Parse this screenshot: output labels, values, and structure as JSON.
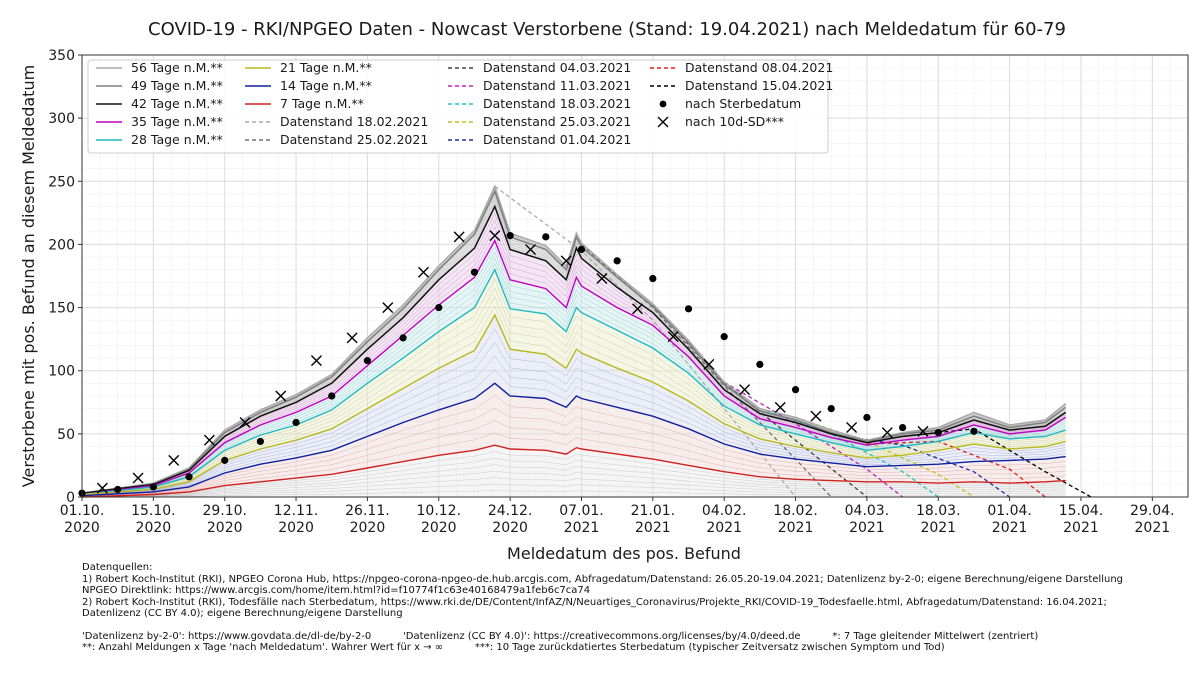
{
  "chart_data": {
    "type": "line",
    "title": "COVID-19 - RKI/NPGEO Daten - Nowcast Verstorbene (Stand: 19.04.2021) nach Meldedatum für 60-79",
    "xlabel": "Meldedatum des pos. Befund",
    "ylabel": "Verstorbene mit pos. Befund an diesem Meldedatum",
    "xlim": [
      "2020-10-01",
      "2021-05-06"
    ],
    "ylim": [
      0,
      350
    ],
    "grid": true,
    "legend_position": "top-left",
    "y_ticks": [
      0,
      50,
      100,
      150,
      200,
      250,
      300,
      350
    ],
    "x_ticks": [
      {
        "date": "2020-10-01",
        "label1": "01.10.",
        "label2": "2020"
      },
      {
        "date": "2020-10-15",
        "label1": "15.10.",
        "label2": "2020"
      },
      {
        "date": "2020-10-29",
        "label1": "29.10.",
        "label2": "2020"
      },
      {
        "date": "2020-11-12",
        "label1": "12.11.",
        "label2": "2020"
      },
      {
        "date": "2020-11-26",
        "label1": "26.11.",
        "label2": "2020"
      },
      {
        "date": "2020-12-10",
        "label1": "10.12.",
        "label2": "2020"
      },
      {
        "date": "2020-12-24",
        "label1": "24.12.",
        "label2": "2020"
      },
      {
        "date": "2021-01-07",
        "label1": "07.01.",
        "label2": "2021"
      },
      {
        "date": "2021-01-21",
        "label1": "21.01.",
        "label2": "2021"
      },
      {
        "date": "2021-02-04",
        "label1": "04.02.",
        "label2": "2021"
      },
      {
        "date": "2021-02-18",
        "label1": "18.02.",
        "label2": "2021"
      },
      {
        "date": "2021-03-04",
        "label1": "04.03.",
        "label2": "2021"
      },
      {
        "date": "2021-03-18",
        "label1": "18.03.",
        "label2": "2021"
      },
      {
        "date": "2021-04-01",
        "label1": "01.04.",
        "label2": "2021"
      },
      {
        "date": "2021-04-15",
        "label1": "15.04.",
        "label2": "2021"
      },
      {
        "date": "2021-04-29",
        "label1": "29.04.",
        "label2": "2021"
      }
    ],
    "x_dates": [
      "2020-10-01",
      "2020-10-15",
      "2020-10-22",
      "2020-10-29",
      "2020-11-05",
      "2020-11-12",
      "2020-11-19",
      "2020-11-26",
      "2020-12-03",
      "2020-12-10",
      "2020-12-17",
      "2020-12-21",
      "2020-12-24",
      "2020-12-31",
      "2021-01-04",
      "2021-01-06",
      "2021-01-07",
      "2021-01-14",
      "2021-01-21",
      "2021-01-28",
      "2021-02-04",
      "2021-02-11",
      "2021-02-18",
      "2021-02-25",
      "2021-03-04",
      "2021-03-11",
      "2021-03-18",
      "2021-03-25",
      "2021-04-01",
      "2021-04-08",
      "2021-04-12"
    ],
    "series": [
      {
        "name": "56 Tage n.M.**",
        "color": "#aaaaaa",
        "style": "solid",
        "values": [
          3,
          11,
          23,
          53,
          69,
          81,
          97,
          126,
          152,
          183,
          211,
          246,
          209,
          199,
          183,
          209,
          201,
          176,
          153,
          124,
          91,
          70,
          63,
          53,
          45,
          51,
          55,
          67,
          57,
          61,
          74
        ]
      },
      {
        "name": "49 Tage n.M.**",
        "color": "#808080",
        "style": "solid",
        "values": [
          3,
          10,
          22,
          51,
          67,
          79,
          95,
          123,
          149,
          180,
          208,
          242,
          206,
          196,
          180,
          206,
          198,
          174,
          151,
          122,
          89,
          68,
          61,
          51,
          44,
          50,
          53,
          64,
          55,
          59,
          71
        ]
      },
      {
        "name": "42 Tage n.M.**",
        "color": "#111111",
        "style": "solid",
        "values": [
          3,
          10,
          21,
          48,
          64,
          75,
          90,
          117,
          142,
          172,
          197,
          230,
          196,
          187,
          172,
          197,
          189,
          166,
          146,
          117,
          85,
          66,
          59,
          50,
          43,
          48,
          51,
          61,
          53,
          56,
          67
        ]
      },
      {
        "name": "35 Tage n.M.**",
        "color": "#c000c0",
        "style": "solid",
        "values": [
          2,
          9,
          19,
          43,
          57,
          67,
          80,
          104,
          128,
          152,
          174,
          203,
          172,
          165,
          150,
          174,
          167,
          150,
          136,
          111,
          80,
          62,
          55,
          47,
          41,
          45,
          48,
          57,
          50,
          53,
          63
        ]
      },
      {
        "name": "28 Tage n.M.**",
        "color": "#20b8c0",
        "style": "solid",
        "values": [
          2,
          8,
          16,
          37,
          49,
          57,
          69,
          90,
          110,
          131,
          150,
          180,
          149,
          145,
          131,
          150,
          146,
          132,
          118,
          98,
          72,
          57,
          50,
          43,
          37,
          40,
          44,
          51,
          46,
          48,
          53
        ]
      },
      {
        "name": "21 Tage n.M.**",
        "color": "#b8b820",
        "style": "solid",
        "values": [
          2,
          6,
          12,
          29,
          38,
          45,
          54,
          70,
          86,
          102,
          116,
          144,
          117,
          113,
          102,
          117,
          114,
          102,
          91,
          76,
          58,
          46,
          40,
          35,
          31,
          33,
          37,
          42,
          38,
          40,
          44
        ]
      },
      {
        "name": "14 Tage n.M.**",
        "color": "#1020a0",
        "style": "solid",
        "values": [
          1,
          4,
          8,
          19,
          26,
          31,
          37,
          48,
          59,
          69,
          78,
          90,
          80,
          78,
          71,
          80,
          78,
          71,
          64,
          54,
          42,
          34,
          30,
          27,
          24,
          25,
          26,
          28,
          29,
          30,
          32
        ]
      },
      {
        "name": "7 Tage n.M.**",
        "color": "#d02020",
        "style": "solid",
        "values": [
          0,
          2,
          4,
          9,
          12,
          15,
          18,
          23,
          28,
          33,
          37,
          41,
          38,
          37,
          34,
          39,
          38,
          34,
          30,
          25,
          20,
          16,
          14,
          13,
          12,
          12,
          11,
          12,
          11,
          12,
          13
        ]
      }
    ],
    "datenstand_series": [
      {
        "name": "Datenstand 18.02.2021",
        "color": "#aaaaaa",
        "dates": [
          "2020-12-21",
          "2021-01-07",
          "2021-01-21",
          "2021-02-04",
          "2021-02-18"
        ],
        "values": [
          246,
          195,
          140,
          70,
          0
        ]
      },
      {
        "name": "Datenstand 25.02.2021",
        "color": "#707070",
        "dates": [
          "2021-01-07",
          "2021-01-21",
          "2021-02-04",
          "2021-02-18",
          "2021-02-25"
        ],
        "values": [
          200,
          150,
          88,
          30,
          0
        ]
      },
      {
        "name": "Datenstand 04.03.2021",
        "color": "#404040",
        "dates": [
          "2021-01-21",
          "2021-02-04",
          "2021-02-18",
          "2021-03-04"
        ],
        "values": [
          152,
          90,
          45,
          0
        ]
      },
      {
        "name": "Datenstand 11.03.2021",
        "color": "#c020c0",
        "dates": [
          "2021-02-04",
          "2021-02-18",
          "2021-03-04",
          "2021-03-11"
        ],
        "values": [
          91,
          58,
          22,
          0
        ]
      },
      {
        "name": "Datenstand 18.03.2021",
        "color": "#20c0c0",
        "dates": [
          "2021-02-11",
          "2021-02-25",
          "2021-03-11",
          "2021-03-18"
        ],
        "values": [
          70,
          50,
          20,
          0
        ]
      },
      {
        "name": "Datenstand 25.03.2021",
        "color": "#c0c020",
        "dates": [
          "2021-02-18",
          "2021-03-04",
          "2021-03-18",
          "2021-03-25"
        ],
        "values": [
          63,
          44,
          18,
          0
        ]
      },
      {
        "name": "Datenstand 01.04.2021",
        "color": "#2030a0",
        "dates": [
          "2021-02-25",
          "2021-03-11",
          "2021-03-25",
          "2021-04-01"
        ],
        "values": [
          50,
          41,
          20,
          0
        ]
      },
      {
        "name": "Datenstand 08.04.2021",
        "color": "#e02020",
        "dates": [
          "2021-03-04",
          "2021-03-18",
          "2021-04-01",
          "2021-04-08"
        ],
        "values": [
          42,
          44,
          22,
          0
        ]
      },
      {
        "name": "Datenstand 15.04.2021",
        "color": "#000000",
        "dates": [
          "2021-03-11",
          "2021-03-25",
          "2021-04-01",
          "2021-04-08",
          "2021-04-17"
        ],
        "values": [
          48,
          54,
          37,
          20,
          0
        ]
      }
    ],
    "sterbedatum_points": {
      "name": "nach Sterbedatum",
      "marker": "dot",
      "dates": [
        "2020-10-01",
        "2020-10-08",
        "2020-10-15",
        "2020-10-22",
        "2020-10-29",
        "2020-11-05",
        "2020-11-12",
        "2020-11-19",
        "2020-11-26",
        "2020-12-03",
        "2020-12-10",
        "2020-12-17",
        "2020-12-24",
        "2020-12-31",
        "2021-01-07",
        "2021-01-14",
        "2021-01-21",
        "2021-01-28",
        "2021-02-04",
        "2021-02-11",
        "2021-02-18",
        "2021-02-25",
        "2021-03-04",
        "2021-03-11",
        "2021-03-18",
        "2021-03-25"
      ],
      "values": [
        3,
        6,
        8,
        16,
        29,
        44,
        59,
        80,
        108,
        126,
        150,
        178,
        207,
        206,
        196,
        187,
        173,
        149,
        127,
        105,
        85,
        70,
        63,
        55,
        51,
        52
      ]
    },
    "sd10_points": {
      "name": "nach 10d-SD***",
      "marker": "x",
      "dates": [
        "2020-10-05",
        "2020-10-12",
        "2020-10-19",
        "2020-10-26",
        "2020-11-02",
        "2020-11-09",
        "2020-11-16",
        "2020-11-23",
        "2020-11-30",
        "2020-12-07",
        "2020-12-14",
        "2020-12-21",
        "2020-12-28",
        "2021-01-04",
        "2021-01-11",
        "2021-01-18",
        "2021-01-25",
        "2021-02-01",
        "2021-02-08",
        "2021-02-15",
        "2021-02-22",
        "2021-03-01",
        "2021-03-08",
        "2021-03-15"
      ],
      "values": [
        7,
        15,
        29,
        45,
        59,
        80,
        108,
        126,
        150,
        178,
        206,
        207,
        196,
        187,
        173,
        149,
        127,
        105,
        85,
        71,
        64,
        55,
        51,
        52
      ]
    }
  },
  "legend": {
    "col1": [
      "56 Tage n.M.**",
      "49 Tage n.M.**",
      "42 Tage n.M.**",
      "35 Tage n.M.**",
      "28 Tage n.M.**"
    ],
    "col2": [
      "21 Tage n.M.**",
      "14 Tage n.M.**",
      "7 Tage n.M.**",
      "Datenstand 18.02.2021",
      "Datenstand 25.02.2021"
    ],
    "col3": [
      "Datenstand 04.03.2021",
      "Datenstand 11.03.2021",
      "Datenstand 18.03.2021",
      "Datenstand 25.03.2021",
      "Datenstand 01.04.2021"
    ],
    "col4": [
      "Datenstand 08.04.2021",
      "Datenstand 15.04.2021",
      "nach Sterbedatum",
      "nach 10d-SD***"
    ]
  },
  "footnotes": {
    "sources_heading": "Datenquellen:",
    "line1": "1) Robert Koch-Institut (RKI), NPGEO Corona Hub, https://npgeo-corona-npgeo-de.hub.arcgis.com, Abfragedatum/Datenstand: 26.05.20-19.04.2021; Datenlizenz by-2-0; eigene Berechnung/eigene Darstellung",
    "line2": "NPGEO Direktlink: https://www.arcgis.com/home/item.html?id=f10774f1c63e40168479a1feb6c7ca74",
    "line3": "2) Robert Koch-Institut (RKI), Todesfälle nach Sterbedatum, https://www.rki.de/DE/Content/InfAZ/N/Neuartiges_Coronavirus/Projekte_RKI/COVID-19_Todesfaelle.html, Abfragedatum/Datenstand: 16.04.2021;",
    "line4": "Datenlizenz (CC BY 4.0); eigene Berechnung/eigene Darstellung",
    "line5": "'Datenlizenz by-2-0': https://www.govdata.de/dl-de/by-2-0          'Datenlizenz (CC BY 4.0)': https://creativecommons.org/licenses/by/4.0/deed.de          *: 7 Tage gleitender Mittelwert (zentriert)",
    "line6": "**: Anzahl Meldungen x Tage 'nach Meldedatum'. Wahrer Wert für x → ∞          ***: 10 Tage zurückdatiertes Sterbedatum (typischer Zeitversatz zwischen Symptom und Tod)"
  }
}
